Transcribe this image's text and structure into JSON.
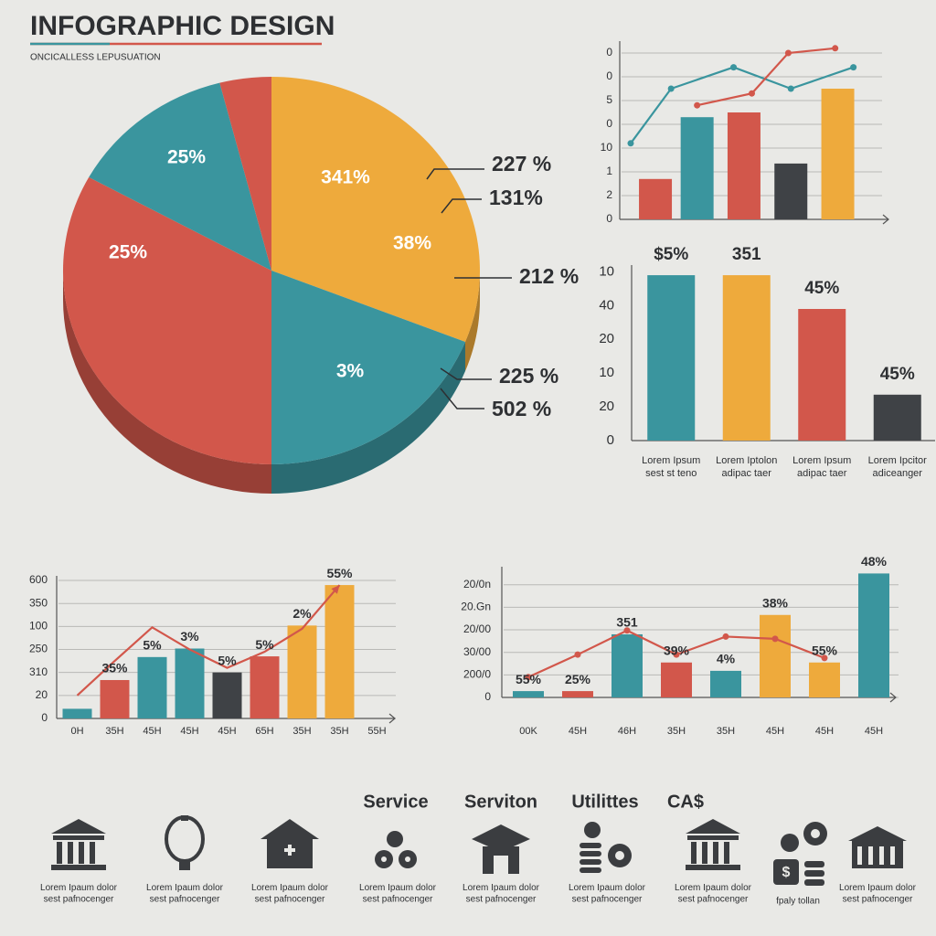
{
  "header": {
    "title": "INFOGRAPHIC DESIGN",
    "subtitle": "ONCICALLESS LEPUSUATION"
  },
  "chart_data": [
    {
      "type": "pie",
      "values": [
        31,
        19,
        33,
        13,
        4
      ],
      "colors": [
        "#eeaa3c",
        "#3a959e",
        "#d2574b",
        "#3a959e",
        "#d2574b"
      ],
      "annotations": [
        "341%",
        "38%",
        "3%",
        "25%",
        "25%"
      ],
      "callouts": [
        "227 %",
        "131%",
        "212 %",
        "225 %",
        "502 %"
      ]
    },
    {
      "type": "combo",
      "xlim": [
        0,
        10
      ],
      "ylim": [
        0,
        7.5
      ],
      "grid": true,
      "yticks": [
        0,
        {
          "value": 1,
          "label": "2"
        },
        {
          "value": 2,
          "label": "1"
        },
        {
          "value": 3,
          "label": "10"
        },
        {
          "value": 4,
          "label": "0"
        },
        {
          "value": 5,
          "label": "5"
        },
        {
          "value": 6,
          "label": "0"
        },
        {
          "value": 7,
          "label": "0"
        }
      ],
      "series": [
        {
          "kind": "bar",
          "x": [
            1.3,
            2.9,
            4.7,
            6.5,
            8.3
          ],
          "values": [
            1.7,
            4.3,
            4.5,
            2.35,
            5.5
          ],
          "colors": [
            "#d2574b",
            "#3a959e",
            "#d2574b",
            "#3f4246",
            "#eeaa3c"
          ]
        },
        {
          "kind": "line",
          "x": [
            0.35,
            1.9,
            4.3,
            6.5,
            8.9
          ],
          "values": [
            3.2,
            5.5,
            6.4,
            5.5,
            6.4
          ],
          "color": "#3a959e",
          "markers": true
        },
        {
          "kind": "line",
          "x": [
            2.9,
            5.0,
            6.4,
            8.2
          ],
          "values": [
            4.8,
            5.3,
            7.0,
            7.2
          ],
          "color": "#d2574b",
          "markers": true
        }
      ]
    },
    {
      "type": "bar",
      "ylim": [
        0,
        5.2
      ],
      "grid": false,
      "yticks": [
        0,
        {
          "value": 1,
          "label": "20"
        },
        {
          "value": 2,
          "label": "10"
        },
        {
          "value": 3,
          "label": "20"
        },
        {
          "value": 4,
          "label": "40"
        },
        {
          "value": 5,
          "label": "10"
        }
      ],
      "categories": [
        "Lorem Ipsum\nsest st teno",
        "Lorem Iptolon\nadipac taer",
        "Lorem Ipsum\nadipac taer",
        "Lorem Ipcitor\nadiceanger"
      ],
      "values": [
        4.9,
        4.9,
        3.9,
        1.36
      ],
      "colors": [
        "#3a959e",
        "#eeaa3c",
        "#d2574b",
        "#3f4246"
      ],
      "annotations": [
        "$5%",
        "351",
        "45%",
        "45%"
      ]
    },
    {
      "type": "combo",
      "ylim": [
        0,
        6.2
      ],
      "grid": true,
      "yticks": [
        0,
        {
          "value": 1,
          "label": "20"
        },
        {
          "value": 2,
          "label": "310"
        },
        {
          "value": 3,
          "label": "250"
        },
        {
          "value": 4,
          "label": "100"
        },
        {
          "value": 5,
          "label": "350"
        },
        {
          "value": 6,
          "label": "600"
        }
      ],
      "categories": [
        "0H",
        "35H",
        "45H",
        "45H",
        "45H",
        "65H",
        "35H",
        "35H",
        "55H"
      ],
      "series": [
        {
          "kind": "bar",
          "values": [
            0.42,
            1.67,
            2.67,
            3.04,
            2.0,
            2.7,
            4.04,
            5.8,
            null
          ],
          "colors": [
            "#3a959e",
            "#d2574b",
            "#3a959e",
            "#3a959e",
            "#3f4246",
            "#d2574b",
            "#eeaa3c",
            "#eeaa3c",
            "#eeaa3c"
          ]
        },
        {
          "kind": "line",
          "values": [
            1.0,
            2.5,
            3.96,
            3.0,
            2.2,
            2.9,
            3.9,
            5.8,
            null
          ],
          "color": "#d2574b",
          "arrow": true
        }
      ],
      "annotations": [
        "35%",
        "5%",
        "3%",
        "5%",
        "5%",
        "2%",
        "55%"
      ]
    },
    {
      "type": "combo",
      "ylim": [
        0,
        5.8
      ],
      "grid": true,
      "yticks": [
        0,
        {
          "value": 1,
          "label": "200/0"
        },
        {
          "value": 2,
          "label": "30/00"
        },
        {
          "value": 3,
          "label": "20/00"
        },
        {
          "value": 4,
          "label": "20.Gn"
        },
        {
          "value": 5,
          "label": "20/0n"
        }
      ],
      "categories": [
        "00K",
        "45H",
        "46H",
        "35H",
        "35H",
        "45H",
        "45H",
        "45H"
      ],
      "series": [
        {
          "kind": "bar",
          "values": [
            0.28,
            0.28,
            2.8,
            1.55,
            1.18,
            3.66,
            1.55,
            5.5
          ],
          "colors": [
            "#3a959e",
            "#d2574b",
            "#3a959e",
            "#d2574b",
            "#3a959e",
            "#eeaa3c",
            "#eeaa3c",
            "#3a959e"
          ]
        },
        {
          "kind": "line",
          "values": [
            0.9,
            1.9,
            2.97,
            1.9,
            2.7,
            2.6,
            1.75,
            null
          ],
          "color": "#d2574b",
          "markers": true
        }
      ],
      "annotations": [
        "55%",
        "25%",
        "351",
        "39%",
        "4%",
        "38%",
        "55%",
        "48%"
      ]
    }
  ],
  "services": {
    "headings": [
      "Service",
      "Serviton",
      "Utilittes",
      "CA$"
    ],
    "items": [
      "Lorem Ipaum dolor\nsest pafnocenger",
      "Lorem Ipaum dolor\nsest pafnocenger",
      "Lorem Ipaum dolor\nsest pafnocenger",
      "Lorem Ipaum dolor\nsest pafnocenger",
      "Lorem Ipaum dolor\nsest pafnocenger",
      "Lorem Ipaum dolor\nsest pafnocenger",
      "Lorem Ipaum dolor\nsest pafnocenger",
      "fpaly tollan",
      "Lorem Ipaum dolor\nsest pafnocenger"
    ]
  }
}
